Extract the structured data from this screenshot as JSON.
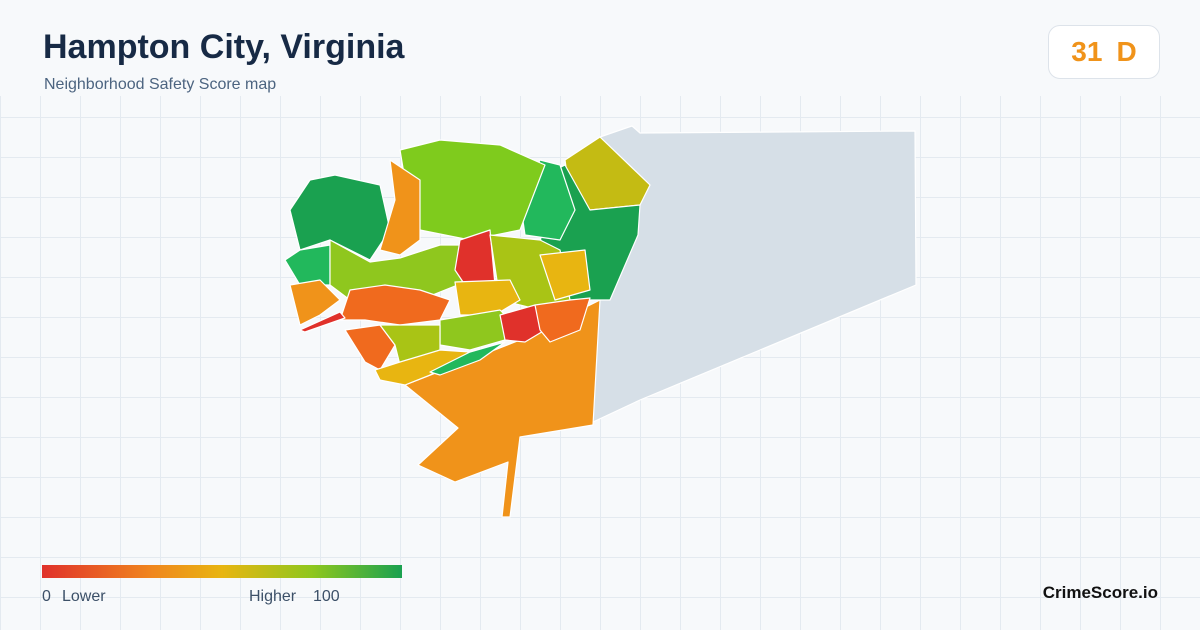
{
  "header": {
    "title": "Hampton City, Virginia",
    "subtitle": "Neighborhood Safety Score map"
  },
  "score": {
    "value": 31,
    "grade": "D"
  },
  "legend": {
    "min": 0,
    "min_label": "Lower",
    "max_label": "Higher",
    "max": 100
  },
  "footer": {
    "brand": "CrimeScore.io"
  }
}
